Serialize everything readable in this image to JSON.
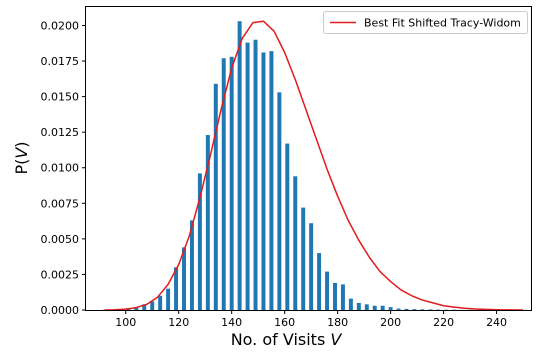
{
  "chart_data": {
    "type": "bar",
    "xlabel": "No. of Visits V",
    "xlabel_text": "No. of Visits ",
    "xlabel_var": "V",
    "ylabel_text": "P(",
    "ylabel_var": "V",
    "ylabel_close": ")",
    "xlim": [
      85,
      253
    ],
    "ylim": [
      0,
      0.0213
    ],
    "x_ticks": [
      100,
      120,
      140,
      160,
      180,
      200,
      220,
      240
    ],
    "x_tick_labels": [
      "100",
      "120",
      "140",
      "160",
      "180",
      "200",
      "220",
      "240"
    ],
    "y_ticks": [
      0,
      0.0025,
      0.005,
      0.0075,
      0.01,
      0.0125,
      0.015,
      0.0175,
      0.02
    ],
    "y_tick_labels": [
      "0.0000",
      "0.0025",
      "0.0050",
      "0.0075",
      "0.0100",
      "0.0125",
      "0.0150",
      "0.0175",
      "0.0200"
    ],
    "bar_color": "#1f77b4",
    "bar_width": 1.5,
    "bars": {
      "x": [
        92,
        95,
        98,
        101,
        104,
        107,
        110,
        113,
        116,
        119,
        122,
        125,
        128,
        131,
        134,
        137,
        140,
        143,
        146,
        149,
        152,
        155,
        158,
        161,
        164,
        167,
        170,
        173,
        176,
        179,
        182,
        185,
        188,
        191,
        194,
        197,
        200,
        203,
        206,
        209,
        212,
        215,
        218,
        221,
        224,
        227,
        230,
        233,
        236,
        239,
        242,
        245,
        248
      ],
      "values": [
        2e-05,
        3e-05,
        5e-05,
        0.0001,
        0.0002,
        0.0004,
        0.0006,
        0.001,
        0.0015,
        0.003,
        0.0044,
        0.0063,
        0.0096,
        0.0123,
        0.0159,
        0.0177,
        0.0178,
        0.0203,
        0.0188,
        0.019,
        0.0181,
        0.0182,
        0.0153,
        0.0117,
        0.0094,
        0.0072,
        0.0061,
        0.004,
        0.0027,
        0.0019,
        0.0018,
        0.0008,
        0.0005,
        0.0004,
        0.0003,
        0.0003,
        0.0002,
        0.0001,
        8e-05,
        6e-05,
        5e-05,
        4e-05,
        3e-05,
        2e-05,
        2e-05,
        1e-05,
        1e-05,
        1e-05,
        1e-05,
        1e-05,
        1e-05,
        1e-05,
        1e-05
      ]
    },
    "series": [
      {
        "name": "Best Fit Shifted Tracy-Widom",
        "color": "#e41a1c",
        "x": [
          92,
          96,
          100,
          104,
          108,
          112,
          116,
          120,
          124,
          128,
          132,
          136,
          140,
          144,
          148,
          152,
          156,
          160,
          164,
          168,
          172,
          176,
          180,
          184,
          188,
          192,
          196,
          200,
          204,
          208,
          212,
          216,
          220,
          224,
          228,
          232,
          236,
          240,
          244,
          250
        ],
        "y": [
          0.0,
          2e-05,
          6e-05,
          0.00017,
          0.0004,
          0.0009,
          0.0018,
          0.0032,
          0.0052,
          0.0079,
          0.0109,
          0.0141,
          0.017,
          0.0191,
          0.0202,
          0.0203,
          0.0196,
          0.0181,
          0.0162,
          0.0141,
          0.012,
          0.0099,
          0.008,
          0.0063,
          0.0049,
          0.0037,
          0.0027,
          0.002,
          0.0014,
          0.001,
          0.0007,
          0.0005,
          0.0003,
          0.0002,
          0.00012,
          7e-05,
          4e-05,
          2e-05,
          1e-05,
          0.0
        ]
      }
    ],
    "legend": {
      "position": "top-right",
      "label": "Best Fit Shifted Tracy-Widom"
    },
    "grid": false
  }
}
